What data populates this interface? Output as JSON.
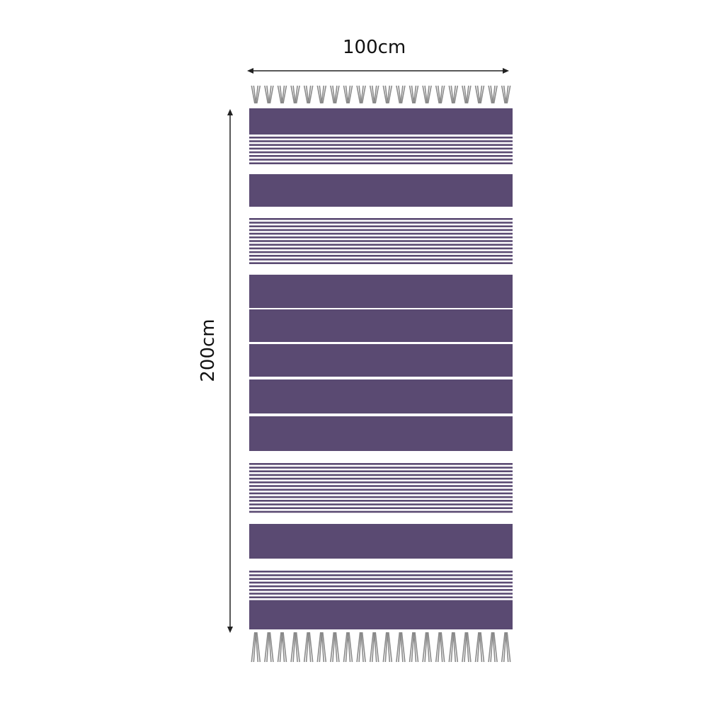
{
  "dimensions": {
    "width_label": "100cm",
    "height_label": "200cm"
  },
  "colors": {
    "stripe": "#5a4a72",
    "fringe": "#8a8a8a",
    "arrow": "#222222"
  },
  "fringe_tassels_per_end": 20
}
